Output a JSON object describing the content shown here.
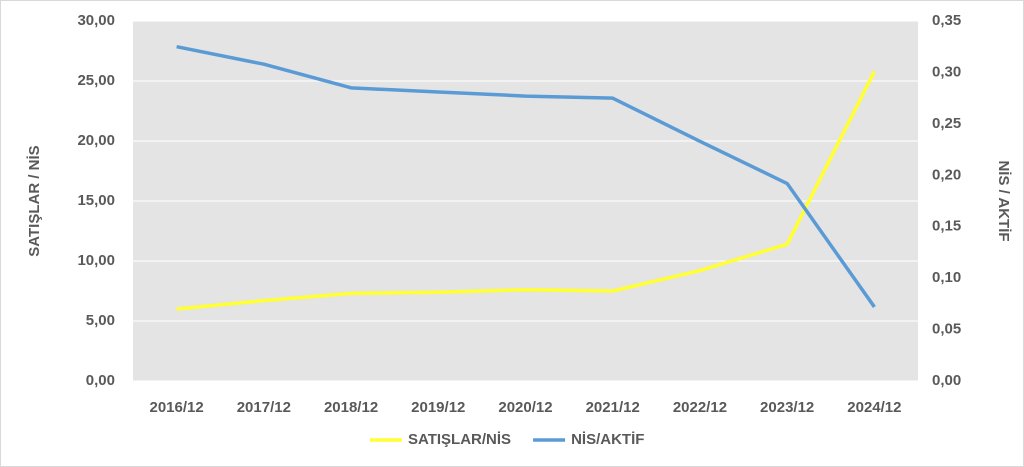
{
  "chart_data": {
    "type": "line",
    "categories": [
      "2016/12",
      "2017/12",
      "2018/12",
      "2019/12",
      "2020/12",
      "2021/12",
      "2022/12",
      "2023/12",
      "2024/12"
    ],
    "series": [
      {
        "name": "SATIŞLAR/NİS",
        "color": "#ffff33",
        "values": [
          6.0,
          6.7,
          7.3,
          7.4,
          7.6,
          7.5,
          9.2,
          11.4,
          25.8
        ]
      },
      {
        "name": "NİS/AKTİF",
        "color": "#5b9bd5",
        "axis": "y2",
        "values": [
          0.325,
          0.308,
          0.285,
          0.281,
          0.277,
          0.275,
          0.233,
          0.192,
          0.072
        ]
      }
    ],
    "y_label": "SATIŞLAR / NİS",
    "y2_label": "NİS / AKTİF",
    "ylim": [
      0,
      30
    ],
    "yticks": [
      {
        "value": 0,
        "label": "0,00"
      },
      {
        "value": 5,
        "label": "5,00"
      },
      {
        "value": 10,
        "label": "10,00"
      },
      {
        "value": 15,
        "label": "15,00"
      },
      {
        "value": 20,
        "label": "20,00"
      },
      {
        "value": 25,
        "label": "25,00"
      },
      {
        "value": 30,
        "label": "30,00"
      }
    ],
    "y2lim": [
      0,
      0.35
    ],
    "y2ticks": [
      {
        "value": 0,
        "label": "0,00"
      },
      {
        "value": 0.05,
        "label": "0,05"
      },
      {
        "value": 0.1,
        "label": "0,10"
      },
      {
        "value": 0.15,
        "label": "0,15"
      },
      {
        "value": 0.2,
        "label": "0,20"
      },
      {
        "value": 0.25,
        "label": "0,25"
      },
      {
        "value": 0.3,
        "label": "0,30"
      },
      {
        "value": 0.35,
        "label": "0,35"
      }
    ],
    "grid": true,
    "legend": "bottom"
  }
}
